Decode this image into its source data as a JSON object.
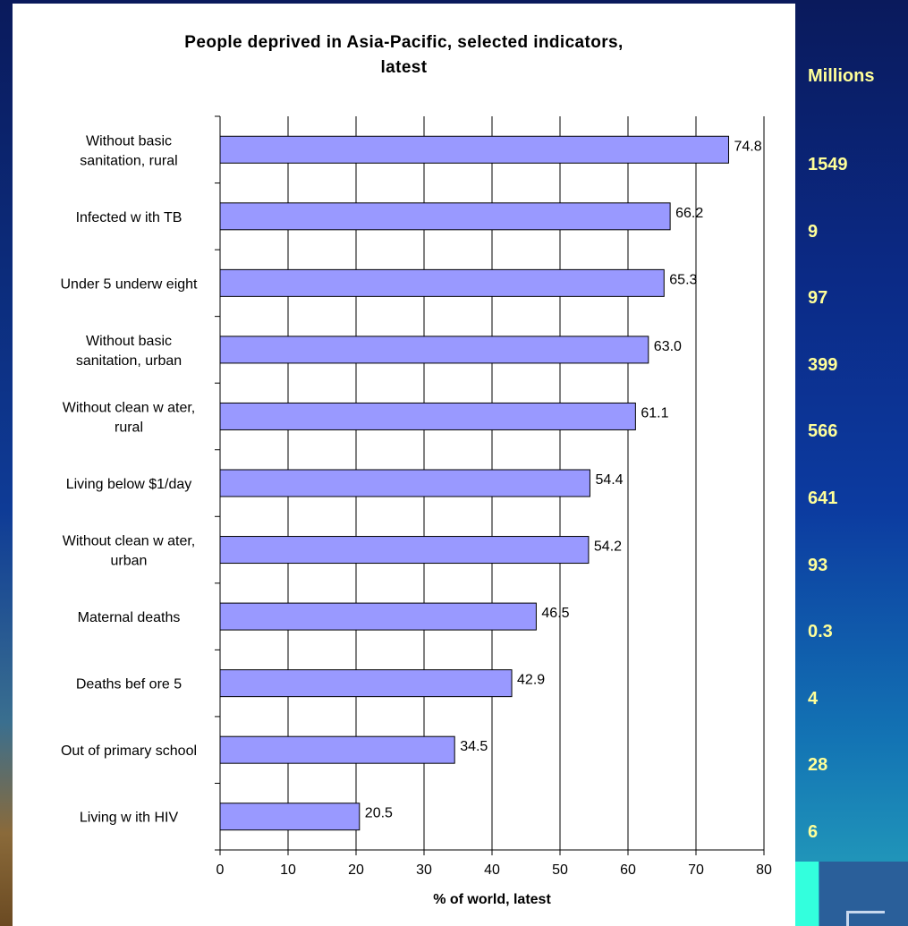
{
  "chart_data": {
    "type": "bar",
    "orientation": "horizontal",
    "title_lines": [
      "People deprived in Asia-Pacific, selected indicators,",
      "latest"
    ],
    "xlabel": "% of world, latest",
    "xlim": [
      0,
      80
    ],
    "xticks": [
      0,
      10,
      20,
      30,
      40,
      50,
      60,
      70,
      80
    ],
    "grid": true,
    "bar_color": "#9999ff",
    "categories": [
      [
        "Without basic",
        "sanitation, rural"
      ],
      [
        "Infected w ith TB"
      ],
      [
        "Under 5 underw eight"
      ],
      [
        "Without basic",
        "sanitation, urban"
      ],
      [
        "Without clean w ater,",
        "rural"
      ],
      [
        "Living below  $1/day"
      ],
      [
        "Without clean w ater,",
        "urban"
      ],
      [
        "Maternal deaths"
      ],
      [
        "Deaths bef ore 5"
      ],
      [
        "Out of primary school"
      ],
      [
        "Living w ith HIV"
      ]
    ],
    "values": [
      74.8,
      66.2,
      65.3,
      63.0,
      61.1,
      54.4,
      54.2,
      46.5,
      42.9,
      34.5,
      20.5
    ],
    "value_labels": [
      "74.8",
      "66.2",
      "65.3",
      "63.0",
      "61.1",
      "54.4",
      "54.2",
      "46.5",
      "42.9",
      "34.5",
      "20.5"
    ]
  },
  "millions": {
    "header": "Millions",
    "values": [
      "1549",
      "9",
      "97",
      "399",
      "566",
      "641",
      "93",
      "0.3",
      "4",
      "28",
      "6"
    ]
  },
  "colors": {
    "background": "#0b2a86",
    "millions_text": "#ffff99",
    "accent": "#33ffdd"
  }
}
